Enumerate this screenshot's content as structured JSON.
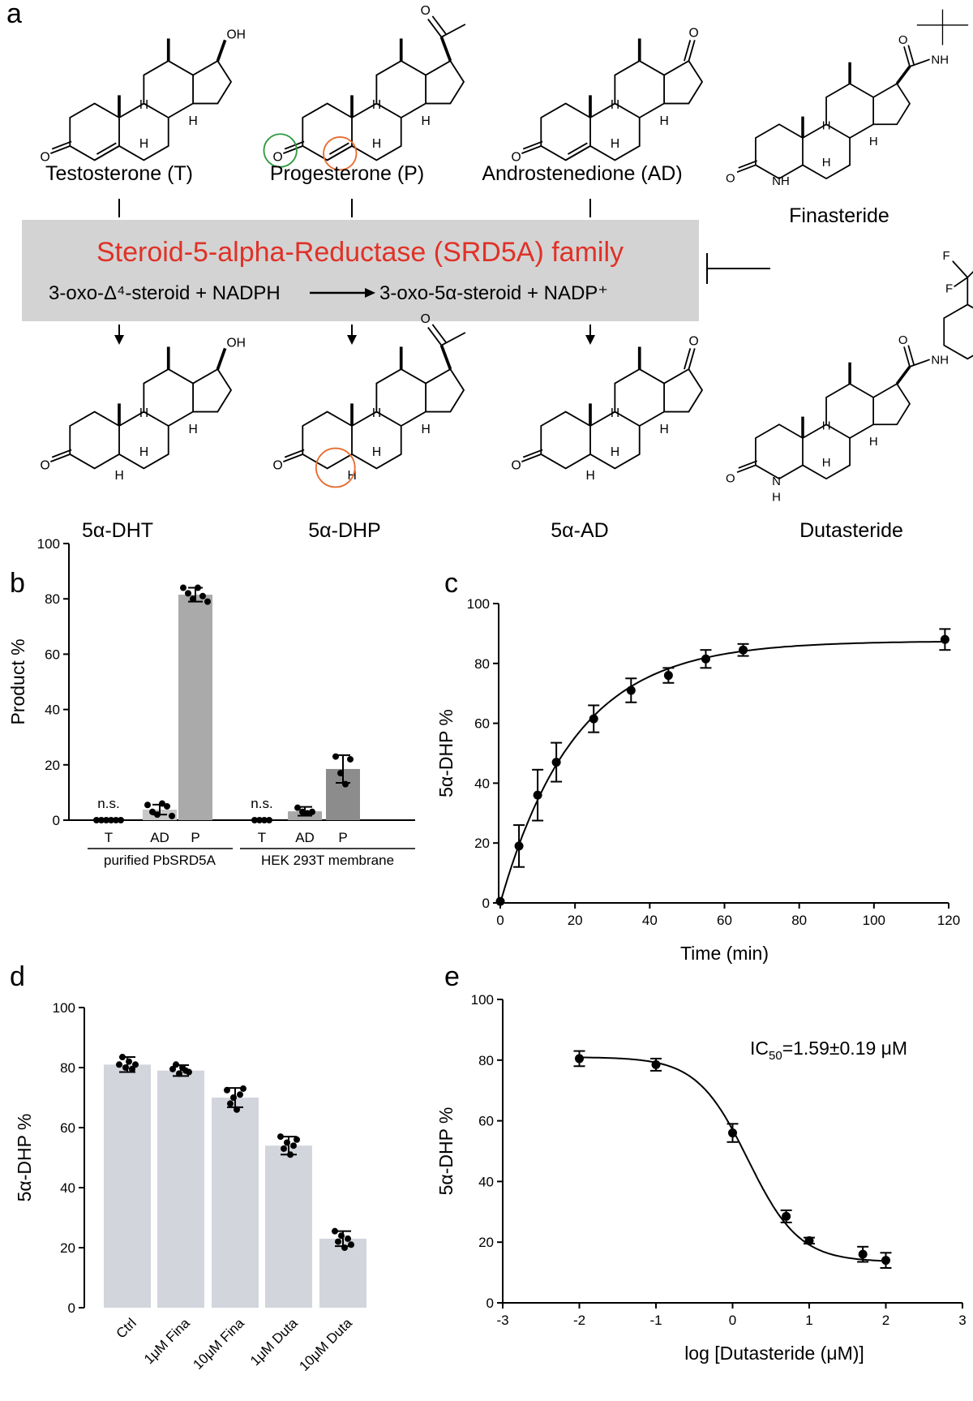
{
  "panels": {
    "a": "a",
    "b": "b",
    "c": "c",
    "d": "d",
    "e": "e"
  },
  "reaction_box": {
    "title": "Steroid-5-alpha-Reductase (SRD5A) family",
    "equation_left": "3-oxo-Δ⁴-steroid + NADPH",
    "equation_right": "3-oxo-5α-steroid + NADP⁺",
    "title_color": "#e03127",
    "box_color": "#d3d3d3"
  },
  "substrates": [
    "Testosterone (T)",
    "Progesterone (P)",
    "Androstenedione (AD)"
  ],
  "products": [
    "5α-DHT",
    "5α-DHP",
    "5α-AD"
  ],
  "inhibitors": [
    "Finasteride",
    "Dutasteride"
  ],
  "atom_labels": {
    "oh": "OH",
    "o": "O",
    "h": "H",
    "nh": "NH",
    "n": "N",
    "f": "F"
  },
  "chart_data": [
    {
      "panel": "b",
      "type": "bar",
      "ylabel": "Product %",
      "ylim": [
        0,
        100
      ],
      "yticks": [
        0,
        20,
        40,
        60,
        80,
        100
      ],
      "categories": [
        "T",
        "AD",
        "P",
        "T",
        "AD",
        "P"
      ],
      "groups": [
        "purified PbSRD5A",
        "HEK 293T membrane"
      ],
      "values": [
        0,
        3.8,
        81.5,
        0,
        3.2,
        18.5
      ],
      "errors": [
        0,
        1.8,
        2.5,
        0,
        1.6,
        5
      ],
      "annotations": [
        "n.s.",
        "n.s."
      ],
      "bar_colors": [
        "#c8c8c8",
        "#c8c8c8",
        "#aaaaaa",
        "#c8c8c8",
        "#a8a8a8",
        "#8c8c8c"
      ]
    },
    {
      "panel": "c",
      "type": "line",
      "xlabel": "Time (min)",
      "ylabel": "5α-DHP %",
      "xlim": [
        0,
        120
      ],
      "ylim": [
        0,
        100
      ],
      "xticks": [
        0,
        20,
        40,
        60,
        80,
        100,
        120
      ],
      "yticks": [
        0,
        20,
        40,
        60,
        80,
        100
      ],
      "x": [
        0,
        5,
        10,
        15,
        25,
        35,
        45,
        55,
        65,
        119
      ],
      "y": [
        0.5,
        19,
        36,
        47,
        61.5,
        71,
        76,
        81.5,
        84.5,
        88
      ],
      "errors": [
        0,
        7,
        8.5,
        6.5,
        4.5,
        4,
        2.5,
        3,
        2,
        3.5
      ]
    },
    {
      "panel": "d",
      "type": "bar",
      "ylabel": "5α-DHP %",
      "ylim": [
        0,
        100
      ],
      "yticks": [
        0,
        20,
        40,
        60,
        80,
        100
      ],
      "categories": [
        "Ctrl",
        "1μM Fina",
        "10μM Fina",
        "1μM Duta",
        "10μM Duta"
      ],
      "values": [
        81,
        79,
        70,
        54,
        23
      ],
      "errors": [
        2.5,
        1.8,
        3.2,
        3,
        2.5
      ],
      "bar_color": "#d3d5dd"
    },
    {
      "panel": "e",
      "type": "line",
      "xlabel": "log [Dutasteride (μM)]",
      "ylabel": "5α-DHP %",
      "annotation": "IC",
      "annotation_sub": "50",
      "annotation_rest": "=1.59±0.19 μM",
      "xlim": [
        -3,
        3
      ],
      "ylim": [
        0,
        100
      ],
      "xticks": [
        -3,
        -2,
        -1,
        0,
        1,
        2,
        3
      ],
      "yticks": [
        0,
        20,
        40,
        60,
        80,
        100
      ],
      "x": [
        -2,
        -1,
        0,
        0.7,
        1,
        1.7,
        2
      ],
      "y": [
        80.5,
        78.5,
        56,
        28.5,
        20.5,
        16,
        14
      ],
      "errors": [
        2.5,
        2,
        3,
        2,
        1,
        2.5,
        2.5
      ]
    }
  ]
}
